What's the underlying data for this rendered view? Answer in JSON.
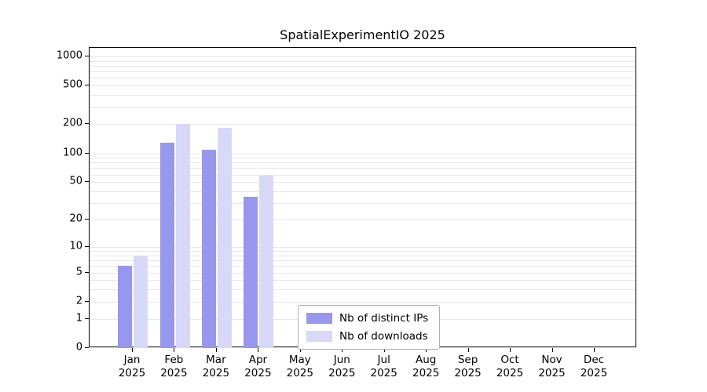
{
  "chart_data": {
    "type": "bar",
    "title": "SpatialExperimentIO 2025",
    "categories": [
      "Jan",
      "Feb",
      "Mar",
      "Apr",
      "May",
      "Jun",
      "Jul",
      "Aug",
      "Sep",
      "Oct",
      "Nov",
      "Dec"
    ],
    "category_year": "2025",
    "series": [
      {
        "name": "Nb of distinct IPs",
        "color": "#9797ee",
        "values": [
          6,
          128,
          109,
          35,
          0,
          0,
          0,
          0,
          0,
          0,
          0,
          0
        ]
      },
      {
        "name": "Nb of downloads",
        "color": "#d8d8f8",
        "values": [
          8,
          201,
          185,
          59,
          0,
          0,
          0,
          0,
          0,
          0,
          0,
          0
        ]
      }
    ],
    "xlabel": "",
    "ylabel": "",
    "yscale": "log-like (log10 of 1+value)",
    "y_ticks": [
      0,
      1,
      2,
      5,
      10,
      20,
      50,
      100,
      200,
      500,
      1000
    ],
    "ylim": [
      0,
      1000
    ],
    "grid": true,
    "legend_position": "bottom-center"
  }
}
